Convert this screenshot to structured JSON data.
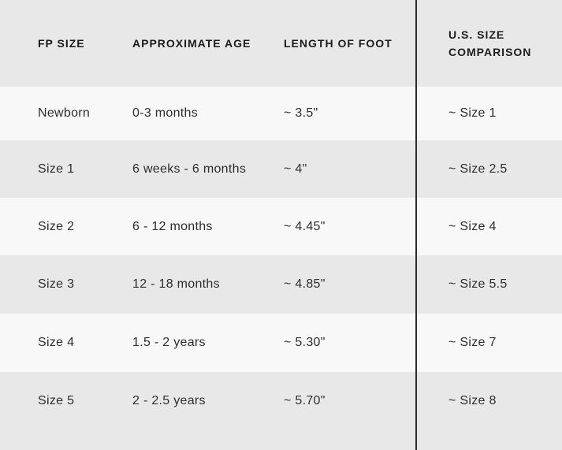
{
  "table": {
    "columns": [
      {
        "label": "FP SIZE"
      },
      {
        "label": "APPROXIMATE AGE"
      },
      {
        "label": "LENGTH OF FOOT"
      },
      {
        "label": "U.S. SIZE COMPARISON"
      }
    ],
    "rows": [
      {
        "fp_size": "Newborn",
        "age": "0-3 months",
        "foot": "~ 3.5\"",
        "us": "~ Size 1"
      },
      {
        "fp_size": "Size 1",
        "age": "6 weeks - 6 months",
        "foot": "~ 4\"",
        "us": "~ Size 2.5"
      },
      {
        "fp_size": "Size 2",
        "age": "6 - 12 months",
        "foot": "~ 4.45\"",
        "us": "~ Size 4"
      },
      {
        "fp_size": "Size 3",
        "age": "12 - 18 months",
        "foot": "~ 4.85\"",
        "us": "~ Size 5.5"
      },
      {
        "fp_size": "Size 4",
        "age": "1.5 - 2 years",
        "foot": "~ 5.30\"",
        "us": "~ Size 7"
      },
      {
        "fp_size": "Size 5",
        "age": "2 - 2.5 years",
        "foot": "~ 5.70\"",
        "us": "~ Size 8"
      }
    ]
  },
  "colors": {
    "stripe_gray": "#e9e8e8",
    "stripe_light": "#f8f8f8",
    "divider": "#2b2b2b",
    "header_text": "#1c1c1c",
    "body_text": "#2e2e2e"
  }
}
